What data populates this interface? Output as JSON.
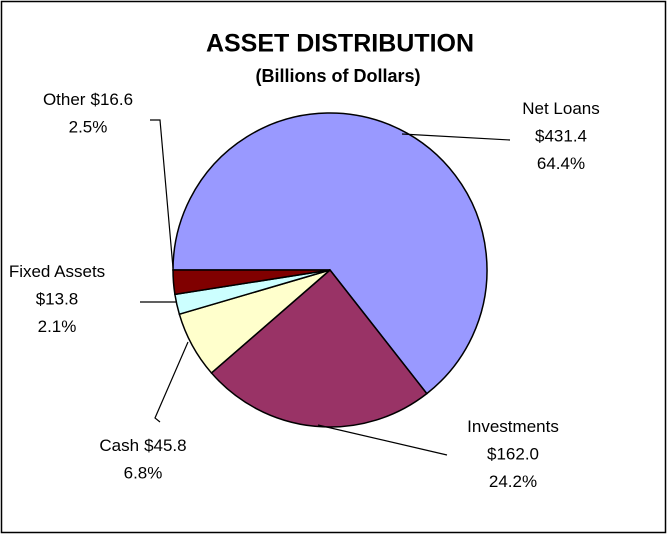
{
  "chart_data": {
    "type": "pie",
    "title": "ASSET DISTRIBUTION",
    "subtitle": "(Billions of Dollars)",
    "categories": [
      "Net Loans",
      "Investments",
      "Cash",
      "Fixed Assets",
      "Other"
    ],
    "values": [
      431.4,
      162.0,
      45.8,
      13.8,
      16.6
    ],
    "value_labels": [
      "$431.4",
      "$162.0",
      "$45.8",
      "$13.8",
      "$16.6"
    ],
    "percent_labels": [
      "64.4%",
      "24.2%",
      "6.8%",
      "2.1%",
      "2.5%"
    ],
    "colors": [
      "#9999ff",
      "#993366",
      "#ffffcc",
      "#ccffff",
      "#800000"
    ]
  }
}
